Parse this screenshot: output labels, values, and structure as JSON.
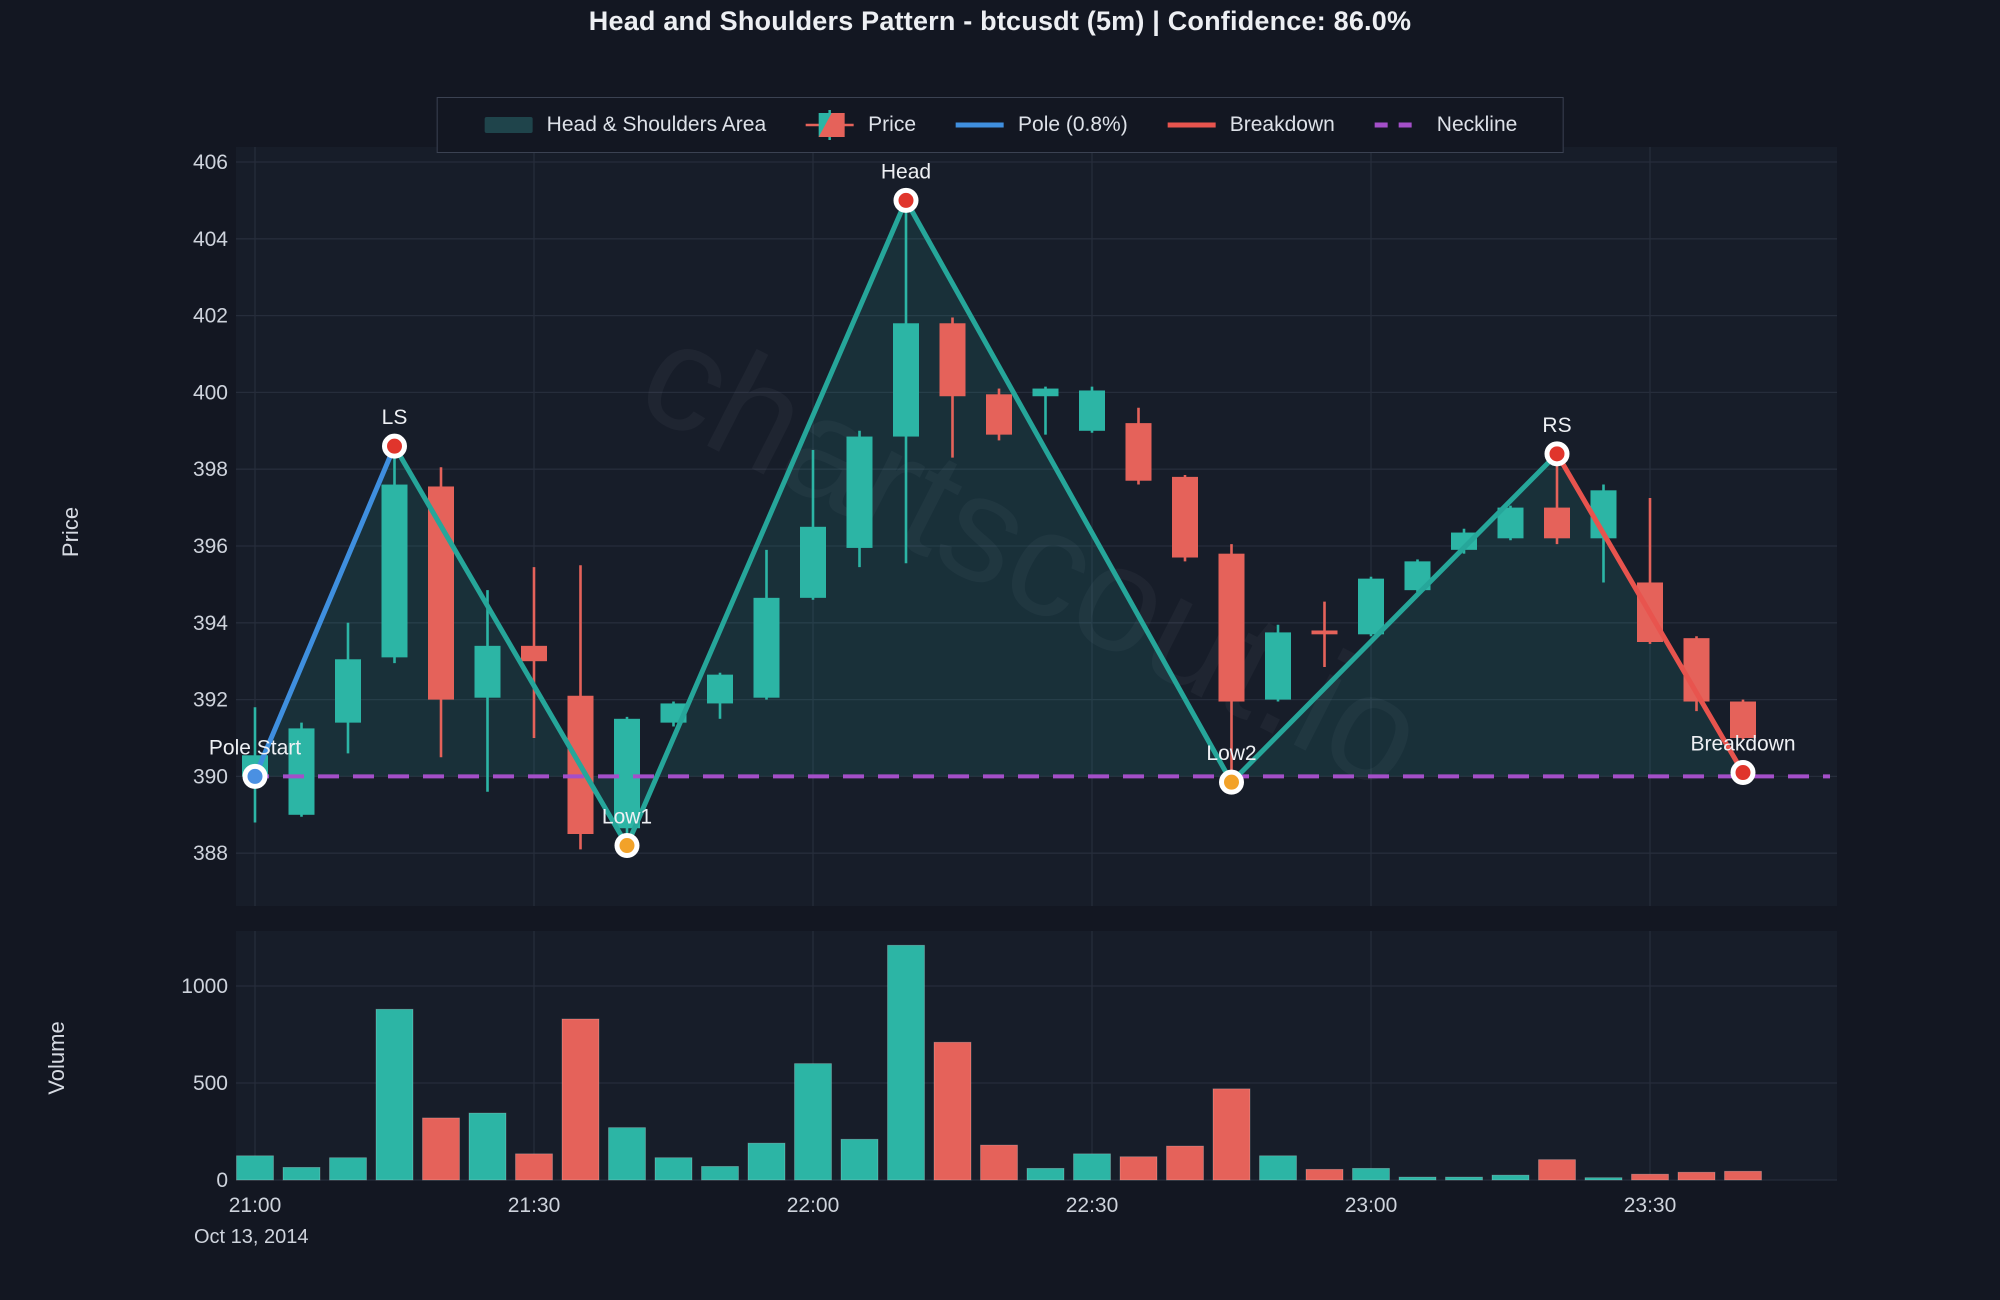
{
  "title": "Head and Shoulders Pattern - btcusdt (5m) | Confidence: 86.0%",
  "watermark": "chartscout.io",
  "colors": {
    "page_bg": "#131722",
    "plot_bg": "#171d29",
    "grid": "#262d3b",
    "tick_text": "#ced3dc",
    "axis_title_text": "#d6dae2",
    "annotation_text": "#eef0f4",
    "candle_up": "#2cb5a5",
    "candle_down": "#e5625a",
    "pattern_line": "#26a69a",
    "pattern_fill": "rgba(42,181,168,0.13)",
    "pole_line": "#3f8fdf",
    "breakdown_line": "#e8544e",
    "neckline": "#a44fc9",
    "marker_red": "#e0352c",
    "marker_orange": "#f2a229",
    "marker_blue": "#4a90e2",
    "marker_ring": "#ffffff"
  },
  "legend": {
    "items": [
      {
        "name": "head-shoulders-area",
        "swatch": "area",
        "label": "Head & Shoulders Area",
        "color": "#1f444b"
      },
      {
        "name": "price",
        "swatch": "candle",
        "label": "Price",
        "color": "#2cb5a5",
        "color2": "#e5625a"
      },
      {
        "name": "pole",
        "swatch": "line",
        "label": "Pole (0.8%)",
        "color": "#3f8fdf"
      },
      {
        "name": "breakdown",
        "swatch": "line",
        "label": "Breakdown",
        "color": "#e8544e"
      },
      {
        "name": "neckline",
        "swatch": "dash",
        "label": "Neckline",
        "color": "#a44fc9"
      }
    ]
  },
  "price_axis": {
    "title": "Price",
    "ticks": [
      406,
      404,
      402,
      400,
      398,
      396,
      394,
      392,
      390,
      388
    ],
    "range": [
      387.0,
      406.4
    ]
  },
  "volume_axis": {
    "title": "Volume",
    "ticks": [
      1000,
      500,
      0
    ],
    "range": [
      0,
      1283
    ]
  },
  "x_axis": {
    "ticks": [
      {
        "label": "21:00",
        "t": 0
      },
      {
        "label": "21:30",
        "t": 6
      },
      {
        "label": "22:00",
        "t": 12
      },
      {
        "label": "22:30",
        "t": 18
      },
      {
        "label": "23:00",
        "t": 24
      },
      {
        "label": "23:30",
        "t": 30
      }
    ],
    "date_label": "Oct 13, 2014"
  },
  "chart_data": {
    "type": "candlestick_with_volume",
    "symbol": "btcusdt",
    "interval": "5m",
    "confidence_pct": 86.0,
    "candles": [
      {
        "t": 0,
        "o": 390.0,
        "h": 391.8,
        "l": 388.8,
        "c": 390.55,
        "v": 125
      },
      {
        "t": 1,
        "o": 389.0,
        "h": 391.4,
        "l": 388.95,
        "c": 391.25,
        "v": 65
      },
      {
        "t": 2,
        "o": 391.4,
        "h": 394.0,
        "l": 390.6,
        "c": 393.05,
        "v": 115
      },
      {
        "t": 3,
        "o": 393.1,
        "h": 398.3,
        "l": 392.95,
        "c": 397.6,
        "v": 880
      },
      {
        "t": 4,
        "o": 397.55,
        "h": 398.05,
        "l": 390.5,
        "c": 392.0,
        "v": 320
      },
      {
        "t": 5,
        "o": 392.05,
        "h": 394.85,
        "l": 389.6,
        "c": 393.4,
        "v": 345
      },
      {
        "t": 6,
        "o": 393.4,
        "h": 395.45,
        "l": 391.0,
        "c": 393.0,
        "v": 135
      },
      {
        "t": 7,
        "o": 392.1,
        "h": 395.5,
        "l": 388.1,
        "c": 388.5,
        "v": 830
      },
      {
        "t": 8,
        "o": 388.65,
        "h": 391.55,
        "l": 388.2,
        "c": 391.5,
        "v": 270
      },
      {
        "t": 9,
        "o": 391.4,
        "h": 391.95,
        "l": 391.3,
        "c": 391.9,
        "v": 115
      },
      {
        "t": 10,
        "o": 391.9,
        "h": 392.7,
        "l": 391.5,
        "c": 392.65,
        "v": 70
      },
      {
        "t": 11,
        "o": 392.05,
        "h": 395.9,
        "l": 392.0,
        "c": 394.65,
        "v": 190
      },
      {
        "t": 12,
        "o": 394.65,
        "h": 398.5,
        "l": 394.6,
        "c": 396.5,
        "v": 600
      },
      {
        "t": 13,
        "o": 395.95,
        "h": 399.0,
        "l": 395.45,
        "c": 398.85,
        "v": 210
      },
      {
        "t": 14,
        "o": 398.85,
        "h": 404.7,
        "l": 395.55,
        "c": 401.8,
        "v": 1210
      },
      {
        "t": 15,
        "o": 401.8,
        "h": 401.95,
        "l": 398.3,
        "c": 399.9,
        "v": 710
      },
      {
        "t": 16,
        "o": 399.95,
        "h": 400.1,
        "l": 398.75,
        "c": 398.9,
        "v": 180
      },
      {
        "t": 17,
        "o": 399.9,
        "h": 400.15,
        "l": 398.9,
        "c": 400.1,
        "v": 60
      },
      {
        "t": 18,
        "o": 399.0,
        "h": 400.15,
        "l": 398.95,
        "c": 400.05,
        "v": 135
      },
      {
        "t": 19,
        "o": 399.2,
        "h": 399.6,
        "l": 397.6,
        "c": 397.7,
        "v": 120
      },
      {
        "t": 20,
        "o": 397.8,
        "h": 397.85,
        "l": 395.6,
        "c": 395.7,
        "v": 175
      },
      {
        "t": 21,
        "o": 395.8,
        "h": 396.05,
        "l": 389.85,
        "c": 391.95,
        "v": 470
      },
      {
        "t": 22,
        "o": 392.0,
        "h": 393.95,
        "l": 391.95,
        "c": 393.75,
        "v": 125
      },
      {
        "t": 23,
        "o": 393.8,
        "h": 394.55,
        "l": 392.85,
        "c": 393.7,
        "v": 55
      },
      {
        "t": 24,
        "o": 393.7,
        "h": 395.2,
        "l": 393.65,
        "c": 395.15,
        "v": 60
      },
      {
        "t": 25,
        "o": 394.85,
        "h": 395.65,
        "l": 394.8,
        "c": 395.6,
        "v": 15
      },
      {
        "t": 26,
        "o": 395.9,
        "h": 396.45,
        "l": 395.8,
        "c": 396.35,
        "v": 15
      },
      {
        "t": 27,
        "o": 396.2,
        "h": 397.05,
        "l": 396.15,
        "c": 397.0,
        "v": 25
      },
      {
        "t": 28,
        "o": 397.0,
        "h": 398.4,
        "l": 396.05,
        "c": 396.2,
        "v": 105
      },
      {
        "t": 29,
        "o": 396.2,
        "h": 397.6,
        "l": 395.05,
        "c": 397.45,
        "v": 12
      },
      {
        "t": 30,
        "o": 395.05,
        "h": 397.25,
        "l": 393.45,
        "c": 393.5,
        "v": 30
      },
      {
        "t": 31,
        "o": 393.6,
        "h": 393.65,
        "l": 391.7,
        "c": 391.95,
        "v": 40
      },
      {
        "t": 32,
        "o": 391.95,
        "h": 392.0,
        "l": 390.95,
        "c": 391.0,
        "v": 45
      }
    ],
    "pattern": {
      "neckline_price": 390.0,
      "points": [
        {
          "name": "pole-start",
          "label": "Pole Start",
          "t": 0,
          "price": 390.0,
          "marker": "blue"
        },
        {
          "name": "ls",
          "label": "LS",
          "t": 3,
          "price": 398.6,
          "marker": "red"
        },
        {
          "name": "low1",
          "label": "Low1",
          "t": 8,
          "price": 388.2,
          "marker": "orange"
        },
        {
          "name": "head",
          "label": "Head",
          "t": 14,
          "price": 405.0,
          "marker": "red"
        },
        {
          "name": "low2",
          "label": "Low2",
          "t": 21,
          "price": 389.85,
          "marker": "orange"
        },
        {
          "name": "rs",
          "label": "RS",
          "t": 28,
          "price": 398.4,
          "marker": "red"
        },
        {
          "name": "breakdown",
          "label": "Breakdown",
          "t": 32,
          "price": 390.1,
          "marker": "red"
        }
      ],
      "lines": [
        {
          "name": "pole-line",
          "kind": "pole",
          "from": "pole-start",
          "to": "ls"
        },
        {
          "name": "pattern-line",
          "kind": "pattern",
          "through": [
            "ls",
            "low1",
            "head",
            "low2",
            "rs"
          ]
        },
        {
          "name": "breakdown-line",
          "kind": "breakdown",
          "from": "rs",
          "to": "breakdown"
        }
      ]
    }
  }
}
